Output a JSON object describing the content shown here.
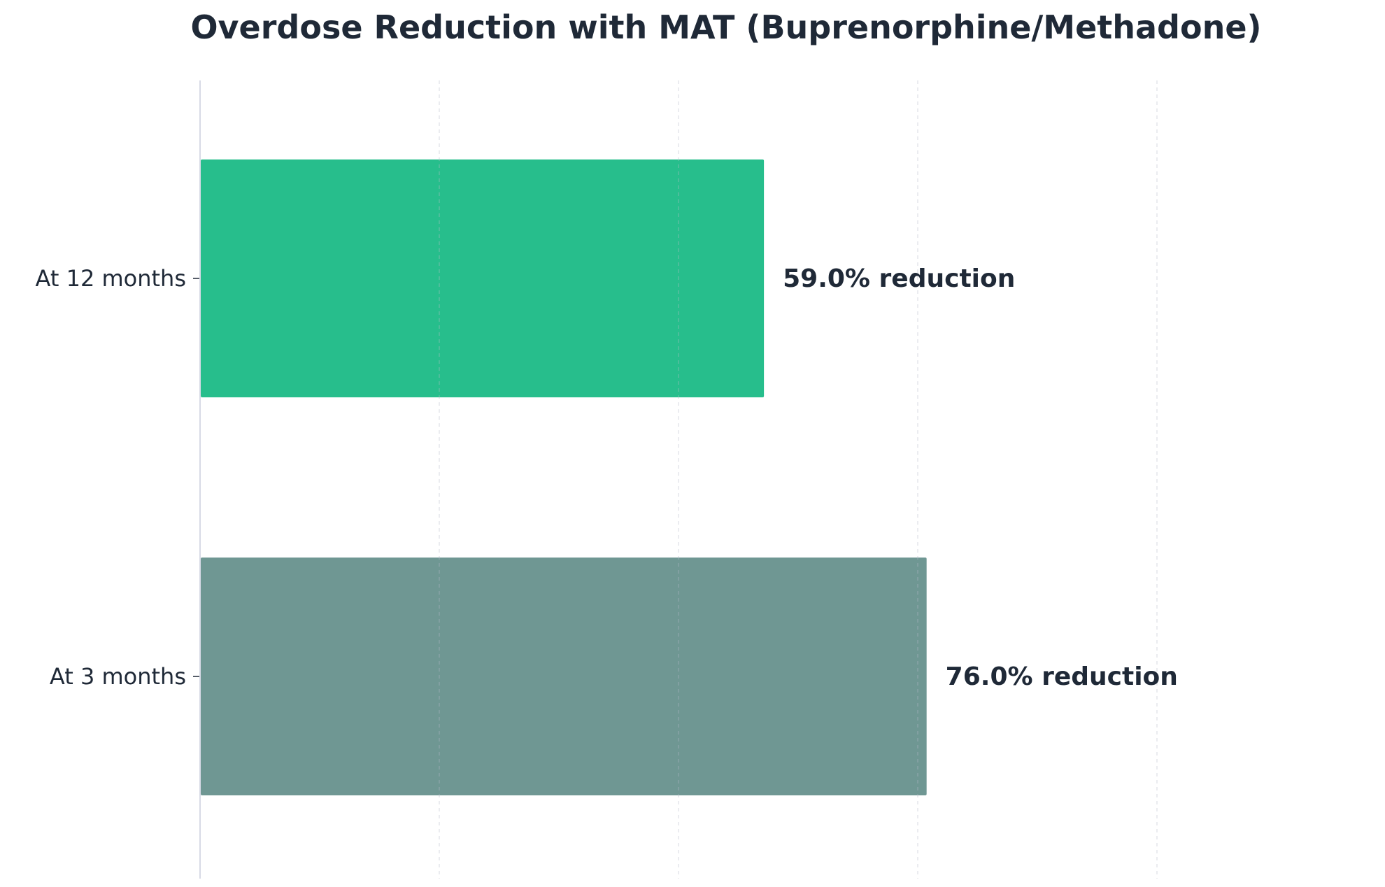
{
  "chart_data": {
    "type": "bar",
    "orientation": "horizontal",
    "title": "Overdose Reduction with MAT (Buprenorphine/Methadone)",
    "xlabel": "",
    "ylabel": "",
    "xlim": [
      0,
      100
    ],
    "gridlines_x": [
      25,
      50,
      75,
      100
    ],
    "grid": true,
    "legend": "none",
    "categories": [
      "At 12 months",
      "At 3 months"
    ],
    "values": [
      59.0,
      76.0
    ],
    "data_labels": [
      "59.0% reduction",
      "76.0% reduction"
    ],
    "colors": [
      "#27be8c",
      "#6f9793"
    ],
    "text_color": "#1f2937",
    "axis_color": "#d8dae6"
  }
}
